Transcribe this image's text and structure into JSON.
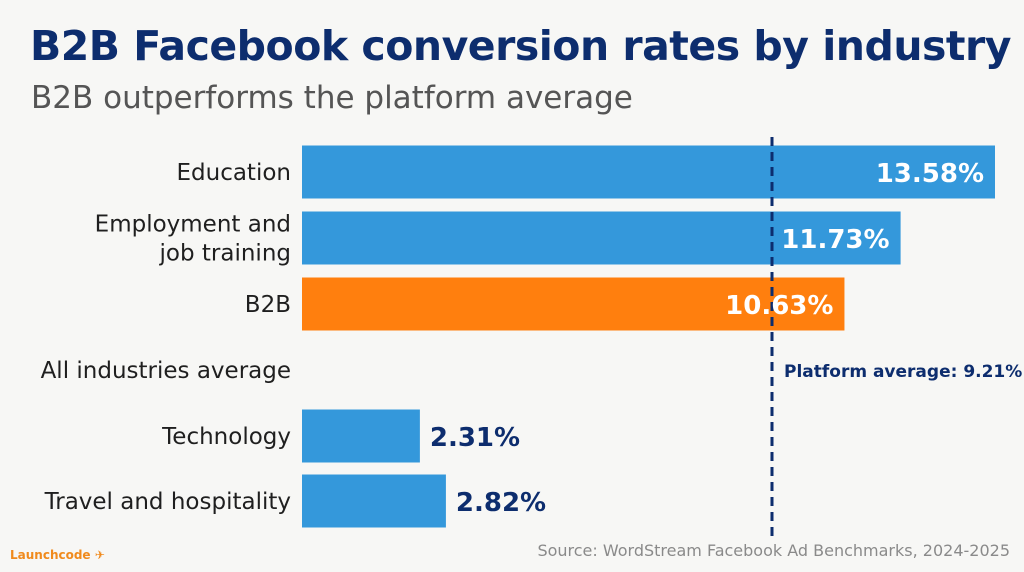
{
  "header": {
    "title": "B2B Facebook conversion rates by industry",
    "subtitle": "B2B outperforms the platform average"
  },
  "chart_data": {
    "type": "bar",
    "orientation": "horizontal",
    "categories": [
      "Education",
      "Employment and job training",
      "B2B",
      "All industries average",
      "Technology",
      "Travel and hospitality"
    ],
    "values": [
      13.58,
      11.73,
      10.63,
      null,
      2.31,
      2.82
    ],
    "value_labels": [
      "13.58%",
      "11.73%",
      "10.63%",
      "",
      "2.31%",
      "2.82%"
    ],
    "highlight_category": "B2B",
    "reference_line": {
      "value": 9.21,
      "label": "Platform average: 9.21%"
    },
    "xlim": [
      0,
      13.58
    ],
    "grid": false,
    "legend": "none",
    "colors": {
      "bar": "#3498db",
      "highlight": "#ff7f0e",
      "label_dark": "#0d2d6e",
      "reference": "#0d2d6e"
    }
  },
  "footer": {
    "brand": "Launchcode",
    "source": "Source: WordStream Facebook Ad Benchmarks, 2024-2025"
  }
}
